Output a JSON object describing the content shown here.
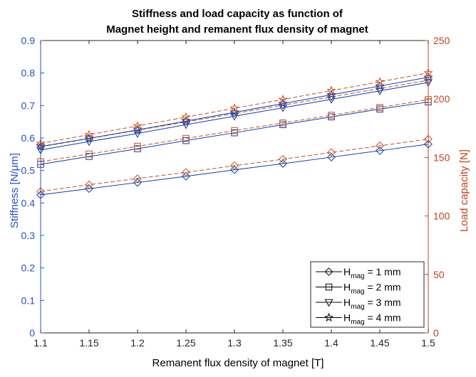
{
  "chart_data": {
    "type": "line",
    "title": [
      "Stiffness and load capacity as function of",
      "Magnet height and remanent flux density of magnet"
    ],
    "xlabel": "Remanent flux density of magnet [T]",
    "ylabel_left": "Stiffness [N/μm]",
    "ylabel_right": "Load capacity [N]",
    "xlim": [
      1.1,
      1.5
    ],
    "ylim_left": [
      0,
      0.9
    ],
    "ylim_right": [
      0,
      250
    ],
    "x_ticks": [
      "1.1",
      "1.15",
      "1.2",
      "1.25",
      "1.3",
      "1.35",
      "1.4",
      "1.45",
      "1.5"
    ],
    "y_left_ticks": [
      "0",
      "0.1",
      "0.2",
      "0.3",
      "0.4",
      "0.5",
      "0.6",
      "0.7",
      "0.8",
      "0.9"
    ],
    "y_right_ticks": [
      "0",
      "50",
      "100",
      "150",
      "200",
      "250"
    ],
    "grid": false,
    "legend_position": "bottom-right",
    "x": [
      1.1,
      1.15,
      1.2,
      1.25,
      1.3,
      1.35,
      1.4,
      1.45,
      1.5
    ],
    "colors": {
      "stiffness": "#0a3fb5",
      "load": "#c8501a",
      "left_axis": "#2750c8",
      "right_axis": "#c0441a"
    },
    "series": [
      {
        "name": "H_mag = 1 mm",
        "legend": {
          "prefix": "H",
          "sub": "mag",
          "suffix": " = 1 mm"
        },
        "marker": "diamond",
        "stiffness": [
          0.425,
          0.444,
          0.463,
          0.482,
          0.502,
          0.521,
          0.541,
          0.561,
          0.581
        ],
        "load": [
          121,
          126.7,
          132,
          137.3,
          143,
          148.5,
          154.3,
          160,
          165.7
        ]
      },
      {
        "name": "H_mag = 2 mm",
        "legend": {
          "prefix": "H",
          "sub": "mag",
          "suffix": " = 2 mm"
        },
        "marker": "square",
        "stiffness": [
          0.519,
          0.543,
          0.567,
          0.592,
          0.616,
          0.641,
          0.665,
          0.689,
          0.711
        ],
        "load": [
          146.4,
          153,
          159.6,
          166.3,
          173,
          179.5,
          186.1,
          192.7,
          199.5
        ]
      },
      {
        "name": "H_mag = 3 mm",
        "legend": {
          "prefix": "H",
          "sub": "mag",
          "suffix": " = 3 mm"
        },
        "marker": "triangle-down",
        "stiffness": [
          0.563,
          0.589,
          0.614,
          0.641,
          0.667,
          0.693,
          0.719,
          0.745,
          0.771
        ],
        "load": [
          159.1,
          166.2,
          173.3,
          180.4,
          187.6,
          194.7,
          201.8,
          209,
          216.1
        ]
      },
      {
        "name": "H_mag = 4 mm",
        "legend": {
          "prefix": "H",
          "sub": "mag",
          "suffix": " = 4 mm"
        },
        "marker": "star",
        "stiffness": [
          0.574,
          0.599,
          0.625,
          0.652,
          0.679,
          0.706,
          0.733,
          0.76,
          0.787
        ],
        "load": [
          162,
          169.5,
          177,
          184.5,
          192.1,
          199.6,
          207.2,
          214.7,
          222.3
        ]
      }
    ]
  }
}
